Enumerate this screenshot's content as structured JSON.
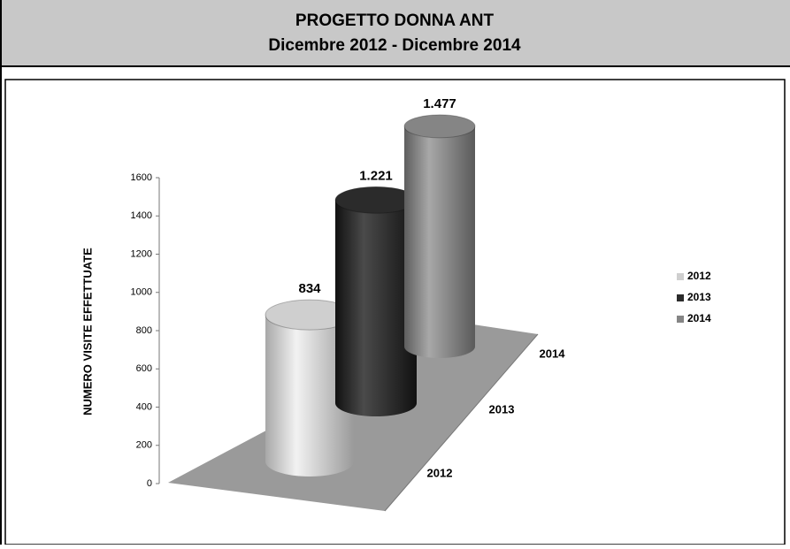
{
  "chart_data": {
    "type": "cylinder",
    "title": "PROGETTO DONNA ANT",
    "subtitle": "Dicembre 2012 - Dicembre 2014",
    "y_label": "NUMERO VISITE EFFETTUATE",
    "categories": [
      "2012",
      "2013",
      "2014"
    ],
    "values": [
      834,
      1221,
      1477
    ],
    "value_labels": [
      "834",
      "1.221",
      "1.477"
    ],
    "colors": [
      "#cfcfcf",
      "#2b2b2b",
      "#858585"
    ],
    "ylim": [
      0,
      1600
    ],
    "yticks": [
      0,
      200,
      400,
      600,
      800,
      1000,
      1200,
      1400,
      1600
    ],
    "legend": "right"
  }
}
